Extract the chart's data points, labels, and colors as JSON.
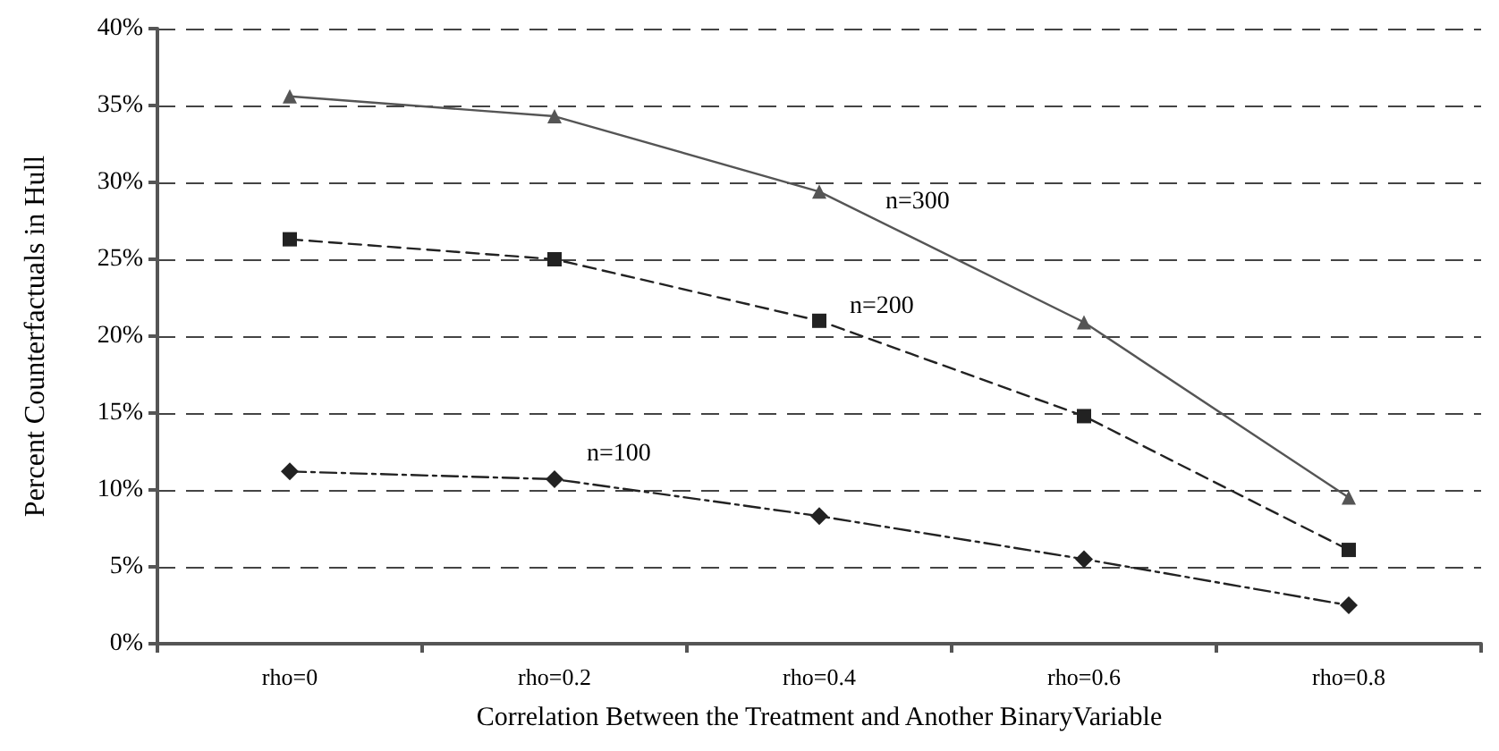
{
  "chart_data": {
    "type": "line",
    "xlabel": "Correlation Between the Treatment and Another BinaryVariable",
    "ylabel": "Percent Counterfactuals in Hull",
    "categories": [
      "rho=0",
      "rho=0.2",
      "rho=0.4",
      "rho=0.6",
      "rho=0.8"
    ],
    "series": [
      {
        "name": "n=300",
        "color": "#555555",
        "marker": "triangle",
        "line_style": "solid",
        "values": [
          35.6,
          34.3,
          29.4,
          20.9,
          9.5
        ]
      },
      {
        "name": "n=200",
        "color": "#222222",
        "marker": "square",
        "line_style": "dashed",
        "values": [
          26.3,
          25.0,
          21.0,
          14.8,
          6.1
        ]
      },
      {
        "name": "n=100",
        "color": "#222222",
        "marker": "diamond",
        "line_style": "dotted",
        "values": [
          11.2,
          10.7,
          8.3,
          5.5,
          2.5
        ]
      }
    ],
    "ylim": [
      0,
      40
    ],
    "yticks": [
      {
        "value": 0,
        "label": "0%"
      },
      {
        "value": 5,
        "label": "5%"
      },
      {
        "value": 10,
        "label": "10%"
      },
      {
        "value": 15,
        "label": "15%"
      },
      {
        "value": 20,
        "label": "20%"
      },
      {
        "value": 25,
        "label": "25%"
      },
      {
        "value": 30,
        "label": "30%"
      },
      {
        "value": 35,
        "label": "35%"
      },
      {
        "value": 40,
        "label": "40%"
      }
    ],
    "grid": "y",
    "legend": false
  }
}
